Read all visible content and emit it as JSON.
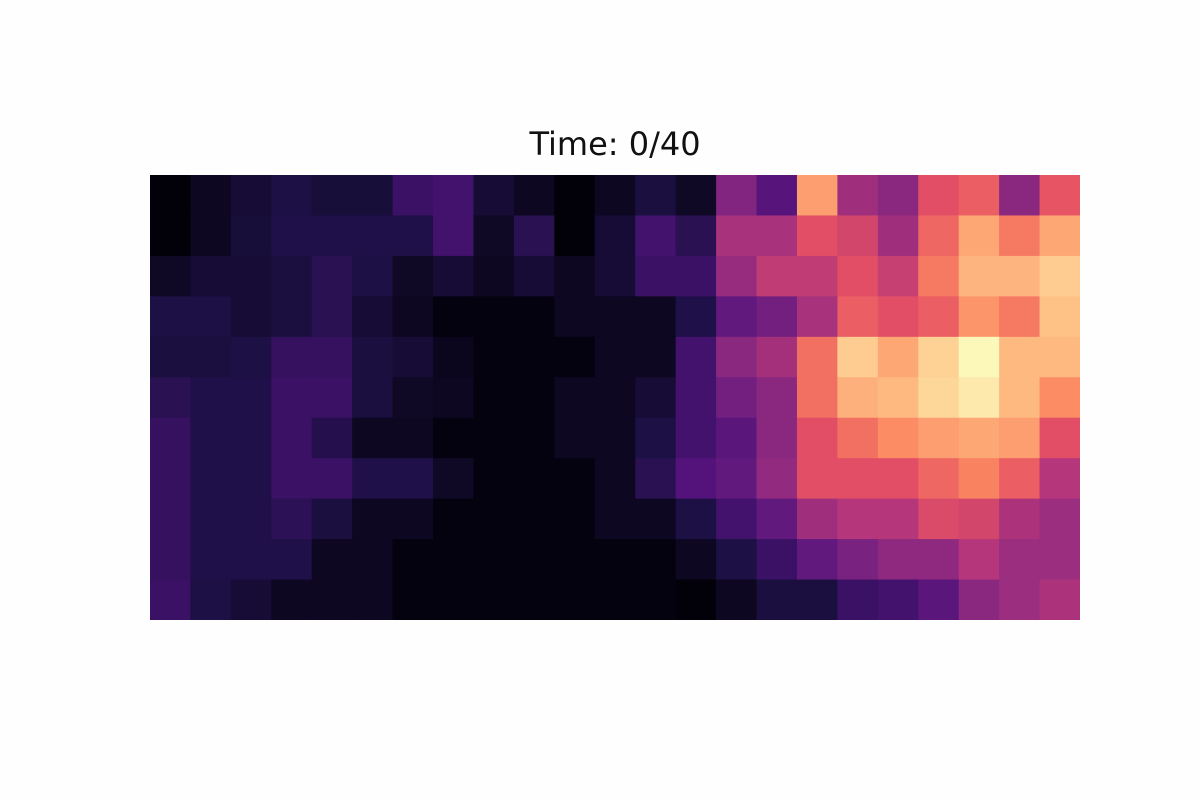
{
  "chart_data": {
    "type": "heatmap",
    "title": "Time: 0/40",
    "colormap": "magma",
    "vmin": 0,
    "vmax": 1,
    "rows": 11,
    "cols": 23,
    "axes_visible": false,
    "values": [
      [
        0.01,
        0.06,
        0.1,
        0.13,
        0.11,
        0.11,
        0.2,
        0.22,
        0.1,
        0.06,
        0.01,
        0.06,
        0.12,
        0.07,
        0.38,
        0.27,
        0.8,
        0.45,
        0.4,
        0.62,
        0.66,
        0.4,
        0.64
      ],
      [
        0.01,
        0.06,
        0.11,
        0.14,
        0.14,
        0.14,
        0.14,
        0.22,
        0.07,
        0.16,
        0.01,
        0.1,
        0.22,
        0.16,
        0.47,
        0.47,
        0.62,
        0.58,
        0.45,
        0.68,
        0.82,
        0.72,
        0.82
      ],
      [
        0.07,
        0.1,
        0.1,
        0.12,
        0.16,
        0.13,
        0.07,
        0.1,
        0.06,
        0.1,
        0.06,
        0.1,
        0.2,
        0.2,
        0.43,
        0.53,
        0.53,
        0.62,
        0.55,
        0.72,
        0.85,
        0.85,
        0.9
      ],
      [
        0.13,
        0.13,
        0.1,
        0.12,
        0.16,
        0.1,
        0.06,
        0.02,
        0.02,
        0.02,
        0.06,
        0.06,
        0.06,
        0.14,
        0.3,
        0.34,
        0.47,
        0.66,
        0.62,
        0.66,
        0.78,
        0.72,
        0.88
      ],
      [
        0.12,
        0.12,
        0.13,
        0.19,
        0.19,
        0.12,
        0.1,
        0.05,
        0.02,
        0.02,
        0.02,
        0.06,
        0.06,
        0.22,
        0.4,
        0.46,
        0.7,
        0.9,
        0.82,
        0.91,
        0.99,
        0.86,
        0.86
      ],
      [
        0.16,
        0.14,
        0.14,
        0.2,
        0.2,
        0.12,
        0.07,
        0.06,
        0.02,
        0.02,
        0.06,
        0.06,
        0.1,
        0.22,
        0.34,
        0.4,
        0.7,
        0.84,
        0.86,
        0.92,
        0.96,
        0.86,
        0.76
      ],
      [
        0.19,
        0.14,
        0.14,
        0.2,
        0.15,
        0.06,
        0.06,
        0.02,
        0.02,
        0.02,
        0.06,
        0.06,
        0.13,
        0.22,
        0.28,
        0.4,
        0.62,
        0.7,
        0.76,
        0.8,
        0.82,
        0.8,
        0.62
      ],
      [
        0.19,
        0.14,
        0.14,
        0.2,
        0.2,
        0.14,
        0.14,
        0.07,
        0.02,
        0.02,
        0.02,
        0.06,
        0.16,
        0.26,
        0.3,
        0.42,
        0.62,
        0.62,
        0.62,
        0.68,
        0.74,
        0.66,
        0.5
      ],
      [
        0.19,
        0.14,
        0.14,
        0.17,
        0.12,
        0.06,
        0.06,
        0.02,
        0.02,
        0.02,
        0.02,
        0.06,
        0.06,
        0.13,
        0.22,
        0.3,
        0.45,
        0.5,
        0.5,
        0.6,
        0.58,
        0.48,
        0.44
      ],
      [
        0.19,
        0.14,
        0.14,
        0.14,
        0.06,
        0.06,
        0.02,
        0.02,
        0.02,
        0.02,
        0.02,
        0.02,
        0.02,
        0.06,
        0.13,
        0.2,
        0.3,
        0.36,
        0.41,
        0.41,
        0.5,
        0.44,
        0.44
      ],
      [
        0.2,
        0.13,
        0.1,
        0.06,
        0.06,
        0.06,
        0.02,
        0.02,
        0.02,
        0.02,
        0.02,
        0.02,
        0.02,
        0.01,
        0.06,
        0.12,
        0.12,
        0.2,
        0.22,
        0.28,
        0.4,
        0.44,
        0.48
      ]
    ]
  }
}
